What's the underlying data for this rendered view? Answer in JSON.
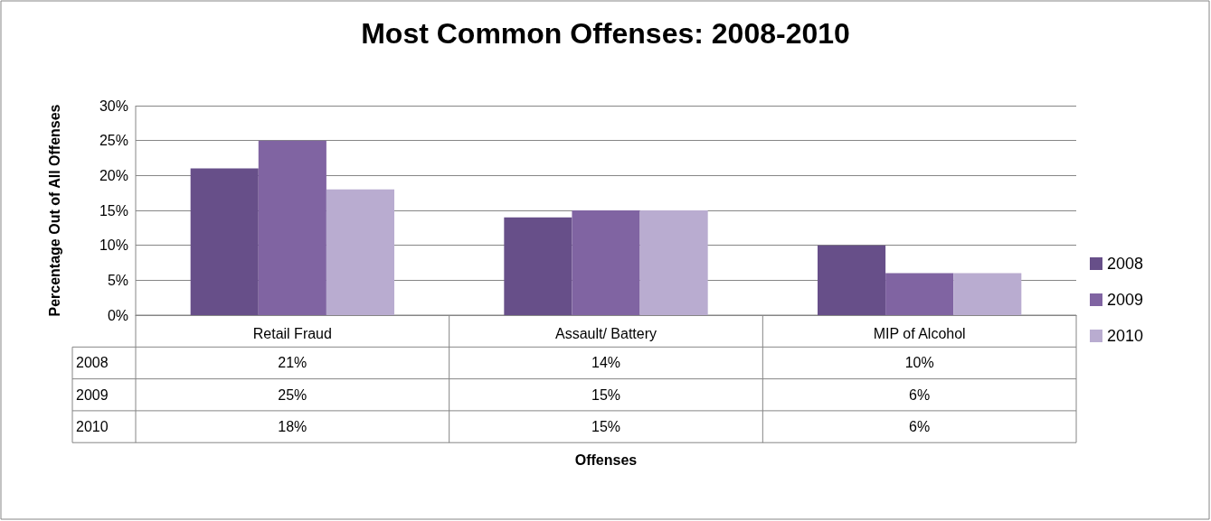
{
  "chart_data": {
    "type": "bar",
    "title": "Most Common Offenses: 2008-2010",
    "annotations": [
      "Offenses"
    ],
    "ylabel": "Percentage Out of All Offenses",
    "categories": [
      "Retail Fraud",
      "Assault/ Battery",
      "MIP of Alcohol"
    ],
    "series": [
      {
        "name": "2008",
        "color": "#674f89",
        "values": [
          21,
          14,
          10
        ],
        "value_labels": [
          "21%",
          "14%",
          "10%"
        ]
      },
      {
        "name": "2009",
        "color": "#8064a2",
        "values": [
          25,
          15,
          6
        ],
        "value_labels": [
          "25%",
          "15%",
          "6%"
        ]
      },
      {
        "name": "2010",
        "color": "#b9acd0",
        "values": [
          18,
          15,
          6
        ],
        "value_labels": [
          "18%",
          "15%",
          "6%"
        ]
      }
    ],
    "ylim": [
      0,
      30
    ],
    "yticks": [
      {
        "value": 0,
        "label": "0%"
      },
      {
        "value": 5,
        "label": "5%"
      },
      {
        "value": 10,
        "label": "10%"
      },
      {
        "value": 15,
        "label": "15%"
      },
      {
        "value": 20,
        "label": "20%"
      },
      {
        "value": 25,
        "label": "25%"
      },
      {
        "value": 30,
        "label": "30%"
      }
    ],
    "grid": "y",
    "legend": "right"
  }
}
